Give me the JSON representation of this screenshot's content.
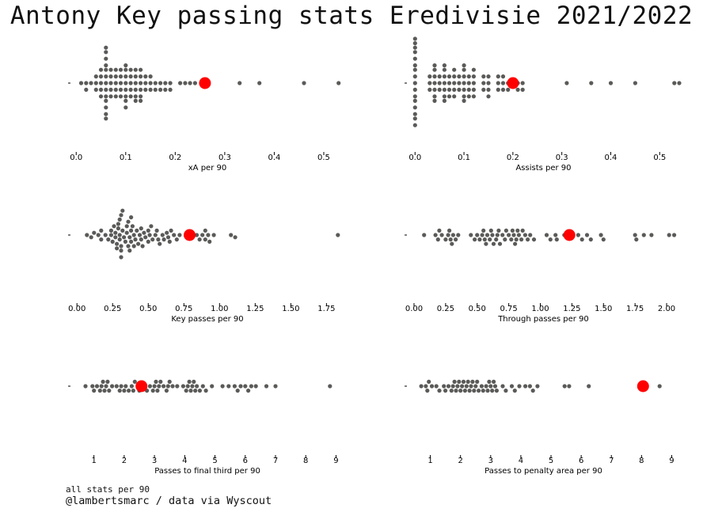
{
  "title": "Antony Key passing stats Eredivisie 2021/2022",
  "footer": {
    "note": "all stats per 90",
    "credit": "@lambertsmarc / data via Wyscout"
  },
  "colors": {
    "dot": "#5a5a58",
    "highlight": "#ff0000",
    "text": "#000000"
  },
  "chart_data": [
    {
      "type": "scatter",
      "xlabel": "xA per 90",
      "xlim": [
        -0.01,
        0.54
      ],
      "xticks": [
        "0.0",
        "0.1",
        "0.2",
        "0.3",
        "0.4",
        "0.5"
      ],
      "highlight": 0.26,
      "values": [
        0.01,
        0.02,
        0.02,
        0.03,
        0.04,
        0.04,
        0.04,
        0.05,
        0.05,
        0.05,
        0.05,
        0.05,
        0.06,
        0.06,
        0.06,
        0.06,
        0.06,
        0.06,
        0.06,
        0.06,
        0.06,
        0.06,
        0.06,
        0.06,
        0.06,
        0.07,
        0.07,
        0.07,
        0.07,
        0.07,
        0.08,
        0.08,
        0.08,
        0.08,
        0.08,
        0.09,
        0.09,
        0.09,
        0.09,
        0.09,
        0.1,
        0.1,
        0.1,
        0.1,
        0.1,
        0.1,
        0.1,
        0.1,
        0.11,
        0.11,
        0.11,
        0.11,
        0.11,
        0.12,
        0.12,
        0.12,
        0.12,
        0.12,
        0.12,
        0.13,
        0.13,
        0.13,
        0.13,
        0.13,
        0.13,
        0.14,
        0.14,
        0.14,
        0.15,
        0.15,
        0.15,
        0.16,
        0.16,
        0.17,
        0.17,
        0.18,
        0.18,
        0.19,
        0.19,
        0.21,
        0.22,
        0.23,
        0.24,
        0.33,
        0.37,
        0.46,
        0.53
      ]
    },
    {
      "type": "scatter",
      "xlabel": "Assists per 90",
      "xlim": [
        -0.015,
        0.54
      ],
      "xticks": [
        "0.0",
        "0.1",
        "0.2",
        "0.3",
        "0.4",
        "0.5"
      ],
      "highlight": 0.2,
      "values": [
        0,
        0,
        0,
        0,
        0,
        0,
        0,
        0,
        0,
        0,
        0,
        0,
        0,
        0,
        0,
        0,
        0.03,
        0.03,
        0.03,
        0.04,
        0.04,
        0.04,
        0.04,
        0.04,
        0.04,
        0.04,
        0.05,
        0.05,
        0.05,
        0.06,
        0.06,
        0.06,
        0.06,
        0.06,
        0.06,
        0.06,
        0.07,
        0.07,
        0.07,
        0.07,
        0.08,
        0.08,
        0.08,
        0.08,
        0.08,
        0.09,
        0.09,
        0.09,
        0.1,
        0.1,
        0.1,
        0.1,
        0.1,
        0.1,
        0.1,
        0.11,
        0.11,
        0.11,
        0.11,
        0.12,
        0.12,
        0.12,
        0.12,
        0.12,
        0.14,
        0.14,
        0.14,
        0.15,
        0.15,
        0.15,
        0.15,
        0.17,
        0.17,
        0.17,
        0.18,
        0.18,
        0.18,
        0.19,
        0.19,
        0.21,
        0.21,
        0.22,
        0.22,
        0.31,
        0.36,
        0.4,
        0.45,
        0.53,
        0.54
      ]
    },
    {
      "type": "scatter",
      "xlabel": "Key passes per 90",
      "xlim": [
        -0.04,
        1.87
      ],
      "xticks": [
        "0.00",
        "0.25",
        "0.50",
        "0.75",
        "1.00",
        "1.25",
        "1.50",
        "1.75"
      ],
      "highlight": 0.79,
      "values": [
        0.07,
        0.1,
        0.12,
        0.15,
        0.17,
        0.17,
        0.2,
        0.22,
        0.24,
        0.24,
        0.25,
        0.26,
        0.27,
        0.27,
        0.28,
        0.28,
        0.29,
        0.29,
        0.3,
        0.3,
        0.3,
        0.31,
        0.31,
        0.31,
        0.31,
        0.32,
        0.32,
        0.33,
        0.34,
        0.35,
        0.35,
        0.36,
        0.36,
        0.37,
        0.37,
        0.38,
        0.38,
        0.38,
        0.39,
        0.4,
        0.4,
        0.41,
        0.42,
        0.43,
        0.44,
        0.45,
        0.45,
        0.46,
        0.47,
        0.48,
        0.5,
        0.5,
        0.51,
        0.52,
        0.53,
        0.55,
        0.56,
        0.57,
        0.58,
        0.6,
        0.61,
        0.63,
        0.64,
        0.65,
        0.66,
        0.68,
        0.7,
        0.72,
        0.84,
        0.86,
        0.88,
        0.9,
        0.9,
        0.92,
        0.93,
        0.96,
        1.08,
        1.11,
        1.83
      ]
    },
    {
      "type": "scatter",
      "xlabel": "Through passes per 90",
      "xlim": [
        -0.05,
        2.1
      ],
      "xticks": [
        "0.00",
        "0.25",
        "0.50",
        "0.75",
        "1.00",
        "1.25",
        "1.50",
        "1.75",
        "2.00"
      ],
      "highlight": 1.23,
      "values": [
        0.08,
        0.17,
        0.19,
        0.2,
        0.22,
        0.25,
        0.27,
        0.28,
        0.29,
        0.3,
        0.31,
        0.33,
        0.35,
        0.45,
        0.48,
        0.5,
        0.52,
        0.54,
        0.55,
        0.56,
        0.57,
        0.58,
        0.6,
        0.61,
        0.62,
        0.63,
        0.65,
        0.66,
        0.67,
        0.68,
        0.7,
        0.72,
        0.73,
        0.75,
        0.77,
        0.78,
        0.79,
        0.8,
        0.81,
        0.82,
        0.83,
        0.85,
        0.86,
        0.88,
        0.9,
        0.92,
        0.95,
        1.05,
        1.08,
        1.12,
        1.13,
        1.19,
        1.3,
        1.33,
        1.37,
        1.4,
        1.48,
        1.5,
        1.75,
        1.76,
        1.82,
        1.88,
        2.02,
        2.06
      ]
    },
    {
      "type": "scatter",
      "xlabel": "Passes to final third per 90",
      "xlim": [
        0.25,
        9.25
      ],
      "xticks": [
        "1",
        "2",
        "3",
        "4",
        "5",
        "6",
        "7",
        "8",
        "9"
      ],
      "highlight": 2.57,
      "values": [
        0.72,
        0.95,
        1.0,
        1.1,
        1.2,
        1.25,
        1.3,
        1.35,
        1.4,
        1.45,
        1.5,
        1.6,
        1.75,
        1.85,
        1.9,
        2.0,
        2.05,
        2.15,
        2.25,
        2.3,
        2.35,
        2.45,
        2.5,
        2.65,
        2.75,
        2.85,
        2.95,
        3.0,
        3.05,
        3.1,
        3.15,
        3.2,
        3.3,
        3.4,
        3.45,
        3.5,
        3.6,
        3.75,
        3.95,
        4.05,
        4.1,
        4.15,
        4.2,
        4.25,
        4.3,
        4.35,
        4.4,
        4.5,
        4.6,
        4.7,
        4.9,
        5.25,
        5.45,
        5.65,
        5.75,
        5.85,
        6.0,
        6.1,
        6.2,
        6.35,
        6.7,
        7.0,
        8.8
      ]
    },
    {
      "type": "scatter",
      "xlabel": "Passes to penalty area per 90",
      "xlim": [
        0.25,
        9.25
      ],
      "xticks": [
        "1",
        "2",
        "3",
        "4",
        "5",
        "6",
        "7",
        "8",
        "9"
      ],
      "highlight": 8.05,
      "values": [
        0.7,
        0.85,
        0.9,
        0.95,
        1.05,
        1.2,
        1.3,
        1.45,
        1.5,
        1.6,
        1.7,
        1.75,
        1.8,
        1.85,
        1.9,
        1.95,
        2.0,
        2.05,
        2.1,
        2.15,
        2.2,
        2.25,
        2.3,
        2.35,
        2.4,
        2.45,
        2.5,
        2.55,
        2.6,
        2.7,
        2.75,
        2.85,
        2.9,
        2.95,
        3.0,
        3.05,
        3.1,
        3.15,
        3.2,
        3.4,
        3.5,
        3.7,
        3.8,
        3.95,
        4.15,
        4.3,
        4.4,
        4.55,
        5.45,
        5.6,
        6.25,
        8.6
      ]
    }
  ]
}
